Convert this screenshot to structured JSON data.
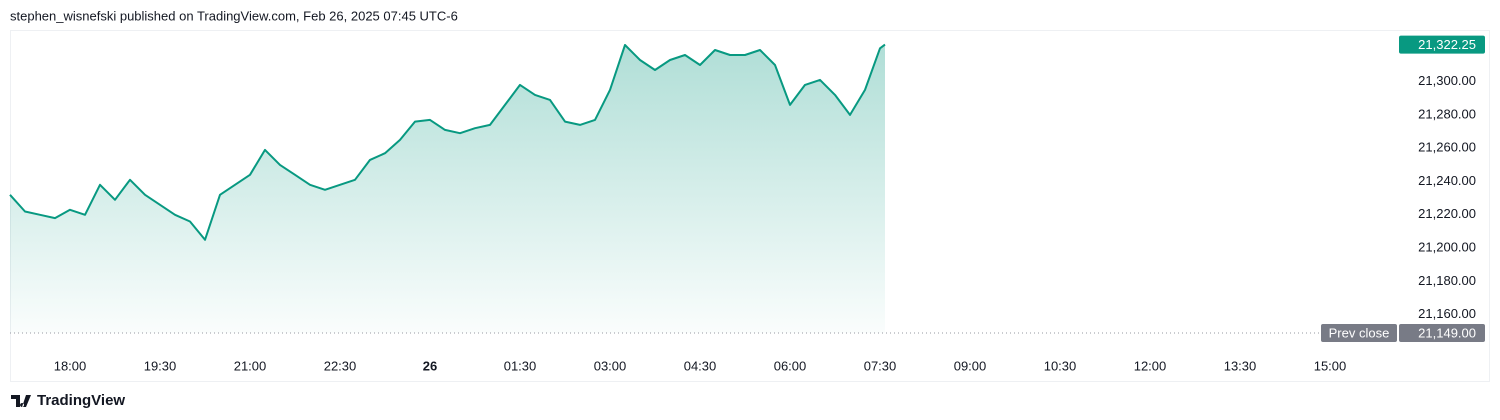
{
  "header": "stephen_wisnefski published on TradingView.com, Feb 26, 2025 07:45 UTC-6",
  "footer": "TradingView",
  "chart_data": {
    "type": "area",
    "x": [
      "2025-02-25T17:00",
      "2025-02-25T17:15",
      "2025-02-25T17:30",
      "2025-02-25T17:45",
      "2025-02-25T18:00",
      "2025-02-25T18:15",
      "2025-02-25T18:30",
      "2025-02-25T18:45",
      "2025-02-25T19:00",
      "2025-02-25T19:15",
      "2025-02-25T19:30",
      "2025-02-25T19:45",
      "2025-02-25T20:00",
      "2025-02-25T20:15",
      "2025-02-25T20:30",
      "2025-02-25T20:45",
      "2025-02-25T21:00",
      "2025-02-25T21:15",
      "2025-02-25T21:30",
      "2025-02-25T21:45",
      "2025-02-25T22:00",
      "2025-02-25T22:15",
      "2025-02-25T22:30",
      "2025-02-25T22:45",
      "2025-02-25T23:00",
      "2025-02-25T23:15",
      "2025-02-25T23:30",
      "2025-02-25T23:45",
      "2025-02-26T00:00",
      "2025-02-26T00:15",
      "2025-02-26T00:30",
      "2025-02-26T00:45",
      "2025-02-26T01:00",
      "2025-02-26T01:15",
      "2025-02-26T01:30",
      "2025-02-26T01:45",
      "2025-02-26T02:00",
      "2025-02-26T02:15",
      "2025-02-26T02:30",
      "2025-02-26T02:45",
      "2025-02-26T03:00",
      "2025-02-26T03:15",
      "2025-02-26T03:30",
      "2025-02-26T03:45",
      "2025-02-26T04:00",
      "2025-02-26T04:15",
      "2025-02-26T04:30",
      "2025-02-26T04:45",
      "2025-02-26T05:00",
      "2025-02-26T05:15",
      "2025-02-26T05:30",
      "2025-02-26T05:45",
      "2025-02-26T06:00",
      "2025-02-26T06:15",
      "2025-02-26T06:30",
      "2025-02-26T06:45",
      "2025-02-26T07:00",
      "2025-02-26T07:15",
      "2025-02-26T07:30",
      "2025-02-26T07:35"
    ],
    "series": [
      {
        "color": "#089981",
        "values": [
          21232,
          21222,
          21220,
          21218,
          21223,
          21220,
          21238,
          21229,
          21241,
          21232,
          21226,
          21220,
          21216,
          21205,
          21232,
          21238,
          21244,
          21259,
          21250,
          21244,
          21238,
          21235,
          21238,
          21241,
          21253,
          21257,
          21265,
          21276,
          21277,
          21271,
          21269,
          21272,
          21274,
          21286,
          21298,
          21292,
          21289,
          21276,
          21274,
          21277,
          21295,
          21322,
          21313,
          21307,
          21313,
          21316,
          21310,
          21319,
          21316,
          21316,
          21319,
          21310,
          21286,
          21298,
          21301,
          21292,
          21280,
          21295,
          21320,
          21322.25
        ]
      }
    ],
    "last_label": {
      "value": 21322.25,
      "label": "21,322.25"
    },
    "prev_close": {
      "text": "Prev close",
      "value": 21149,
      "label": "21,149.00"
    },
    "xlim": [
      "2025-02-25T17:00",
      "2025-02-26T16:05"
    ],
    "xticks": [
      {
        "value": "2025-02-25T18:00",
        "label": "18:00"
      },
      {
        "value": "2025-02-25T19:30",
        "label": "19:30"
      },
      {
        "value": "2025-02-25T21:00",
        "label": "21:00"
      },
      {
        "value": "2025-02-25T22:30",
        "label": "22:30"
      },
      {
        "value": "2025-02-26T00:00",
        "label": "26"
      },
      {
        "value": "2025-02-26T01:30",
        "label": "01:30"
      },
      {
        "value": "2025-02-26T03:00",
        "label": "03:00"
      },
      {
        "value": "2025-02-26T04:30",
        "label": "04:30"
      },
      {
        "value": "2025-02-26T06:00",
        "label": "06:00"
      },
      {
        "value": "2025-02-26T07:30",
        "label": "07:30"
      },
      {
        "value": "2025-02-26T09:00",
        "label": "09:00"
      },
      {
        "value": "2025-02-26T10:30",
        "label": "10:30"
      },
      {
        "value": "2025-02-26T12:00",
        "label": "12:00"
      },
      {
        "value": "2025-02-26T13:30",
        "label": "13:30"
      },
      {
        "value": "2025-02-26T15:00",
        "label": "15:00"
      }
    ],
    "ylim": [
      21149,
      21331
    ],
    "yticks": [
      {
        "value": 21160,
        "label": "21,160.00"
      },
      {
        "value": 21180,
        "label": "21,180.00"
      },
      {
        "value": 21200,
        "label": "21,200.00"
      },
      {
        "value": 21220,
        "label": "21,220.00"
      },
      {
        "value": 21240,
        "label": "21,240.00"
      },
      {
        "value": 21260,
        "label": "21,260.00"
      },
      {
        "value": 21280,
        "label": "21,280.00"
      },
      {
        "value": 21300,
        "label": "21,300.00"
      }
    ]
  }
}
